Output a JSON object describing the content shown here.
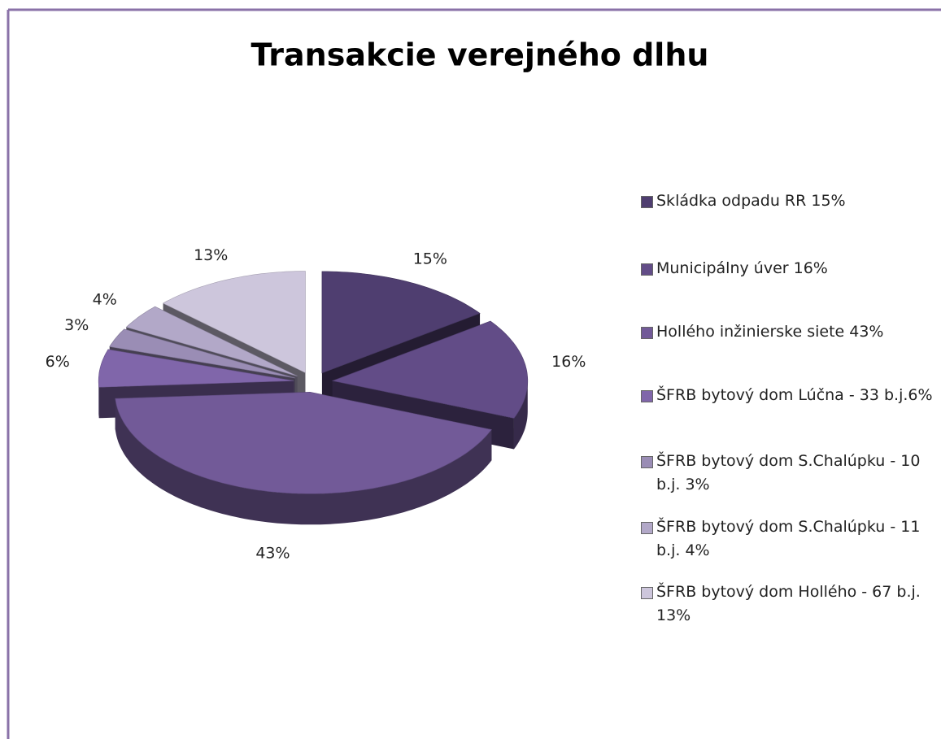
{
  "chart_data": {
    "type": "pie",
    "title": "Transakcie verejného dlhu",
    "categories": [
      "Skládka odpadu RR 15%",
      "Municipálny úver 16%",
      "Hollého inžinierske siete 43%",
      "ŠFRB bytový dom Lúčna - 33 b.j.6%",
      "ŠFRB bytový dom S.Chalúpku - 10 b.j. 3%",
      "ŠFRB bytový dom S.Chalúpku - 11 b.j. 4%",
      "ŠFRB bytový dom Hollého - 67 b.j. 13%"
    ],
    "values": [
      15,
      16,
      43,
      6,
      3,
      4,
      13
    ],
    "value_labels": [
      "15%",
      "16%",
      "43%",
      "6%",
      "3%",
      "4%",
      "13%"
    ],
    "colors": [
      "#4f3e70",
      "#624c87",
      "#725a98",
      "#8066aa",
      "#9a8db5",
      "#b2a8c8",
      "#cdc6dc"
    ],
    "legend": "right"
  }
}
